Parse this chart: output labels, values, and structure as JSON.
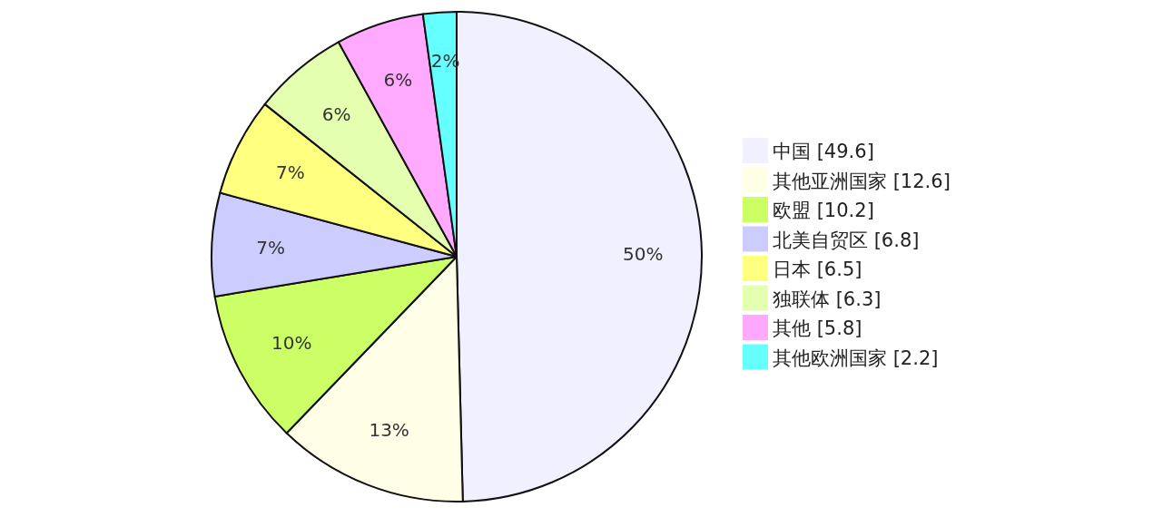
{
  "chart_data": {
    "type": "pie",
    "categories": [
      "中国 [49.6]",
      "其他亚洲国家 [12.6]",
      "欧盟 [10.2]",
      "北美自贸区 [6.8]",
      "日本 [6.5]",
      "独联体 [6.3]",
      "其他 [5.8]",
      "其他欧洲国家 [2.2]"
    ],
    "values": [
      49.6,
      12.6,
      10.2,
      6.8,
      6.5,
      6.3,
      5.8,
      2.2
    ],
    "value_labels": [
      "50%",
      "13%",
      "10%",
      "7%",
      "7%",
      "6%",
      "6%",
      "2%"
    ],
    "colors": [
      "#f0f0ff",
      "#ffffe8",
      "#ccff66",
      "#ccccff",
      "#ffff80",
      "#e5ffb0",
      "#ffaaff",
      "#66ffff"
    ],
    "legend": "right"
  }
}
